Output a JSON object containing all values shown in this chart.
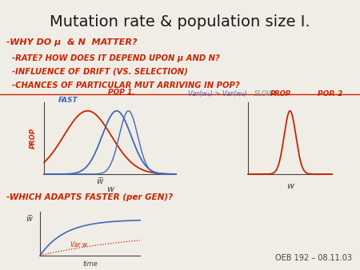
{
  "title": "Mutation rate & population size I.",
  "bg_color": "#f0ede6",
  "title_color": "#1a1a1a",
  "red_color": "#cc2200",
  "blue_color": "#4466bb",
  "gray_color": "#888888",
  "dark_color": "#444444",
  "footer": "OEB 192 – 08.11.03",
  "handwritten_lines": [
    "-WHY DO μ  & N  MATTER?",
    "  -RATE? HOW DOES IT DEPEND UPON μ AND N?",
    "  -INFLUENCE OF DRIFT (VS. SELECTION)",
    "  -CHANCES OF PARTICULAR MUT ARRIVING IN POP?"
  ],
  "bottom_question": "-WHICH ADAPTS FASTER (per GEN)?",
  "left_label_fast": "FAST",
  "left_label_pop1": "POP 1.",
  "var_label": "Var(w₁) > Var(w₂)",
  "slow_label": "SLOW",
  "right_label_prop": "PROP",
  "right_label_pop2": "POP. 2",
  "left_prop_label": "PROP",
  "w_label": "w",
  "wbar_label": "w̅",
  "time_label": "time",
  "var_w_label": "Var w"
}
